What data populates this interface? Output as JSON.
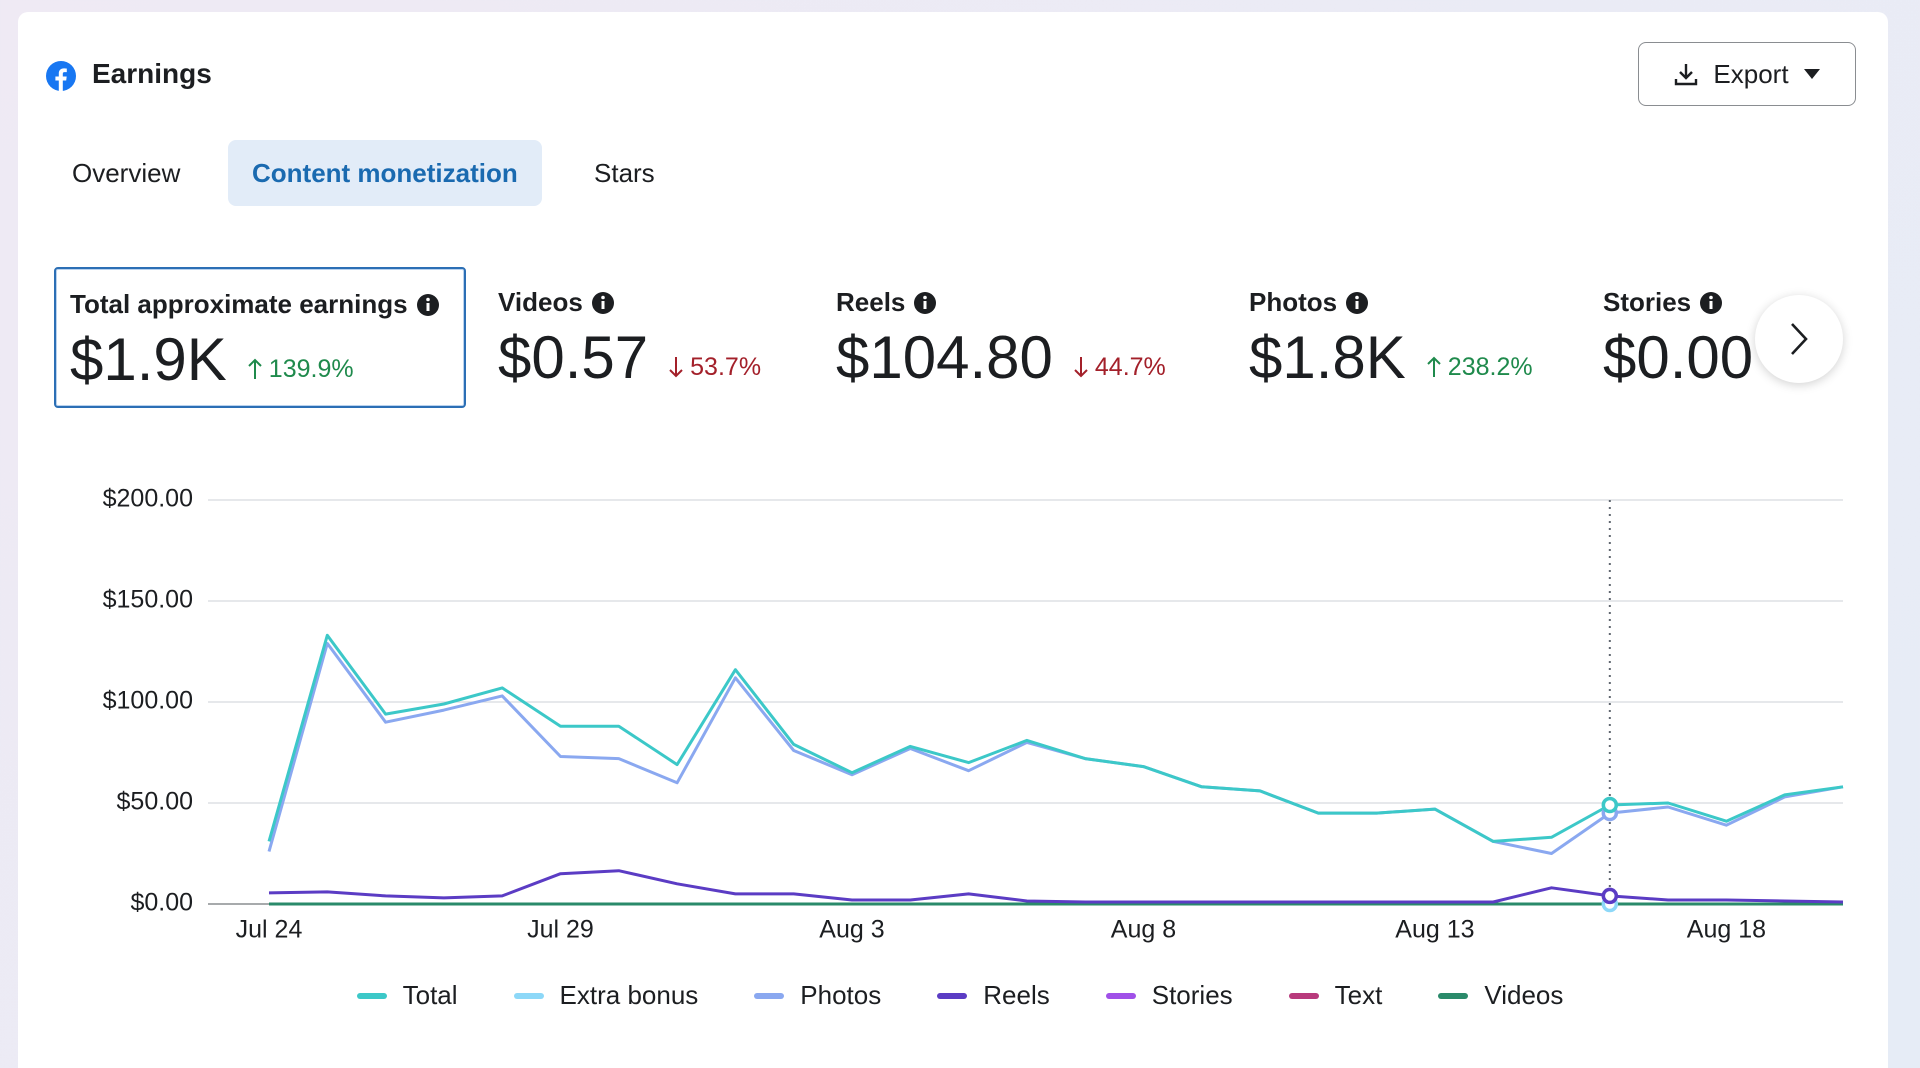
{
  "header": {
    "title": "Earnings",
    "export": "Export"
  },
  "tabs": [
    "Overview",
    "Content monetization",
    "Stars"
  ],
  "metrics": [
    {
      "label": "Total approximate earnings",
      "value": "$1.9K",
      "change": "139.9%",
      "trend": "up"
    },
    {
      "label": "Videos",
      "value": "$0.57",
      "change": "53.7%",
      "trend": "down"
    },
    {
      "label": "Reels",
      "value": "$104.80",
      "change": "44.7%",
      "trend": "down"
    },
    {
      "label": "Photos",
      "value": "$1.8K",
      "change": "238.2%",
      "trend": "up"
    },
    {
      "label": "Stories",
      "value": "$0.00"
    }
  ],
  "chart_data": {
    "type": "line",
    "categories": [
      "Jul 24",
      null,
      null,
      null,
      null,
      "Jul 29",
      null,
      null,
      null,
      null,
      "Aug 3",
      null,
      null,
      null,
      null,
      "Aug 8",
      null,
      null,
      null,
      null,
      "Aug 13",
      null,
      null,
      null,
      null,
      "Aug 18",
      null,
      null
    ],
    "series": [
      {
        "name": "Total",
        "color": "#3cc8c8",
        "values": [
          31,
          133,
          94,
          99,
          107,
          88,
          88,
          69,
          116,
          79,
          65,
          78,
          70,
          81,
          72,
          68,
          58,
          56,
          45,
          45,
          47,
          31,
          33,
          49,
          50,
          41,
          54,
          58
        ]
      },
      {
        "name": "Extra bonus",
        "color": "#8dd8f8",
        "values": [
          0,
          0,
          0,
          0,
          0,
          0,
          0,
          0,
          0,
          0,
          0,
          0,
          0,
          0,
          0,
          0,
          0,
          0,
          0,
          0,
          0,
          0,
          0,
          0,
          0,
          0,
          0,
          0
        ]
      },
      {
        "name": "Photos",
        "color": "#8aa8f0",
        "values": [
          26,
          129,
          90,
          96,
          103,
          73,
          72,
          60,
          112,
          76,
          64,
          77,
          66,
          80,
          72,
          68,
          58,
          56,
          45,
          45,
          47,
          31,
          25,
          45,
          48,
          39,
          53,
          58
        ]
      },
      {
        "name": "Reels",
        "color": "#5b3cc4",
        "values": [
          5.5,
          6,
          4,
          3,
          4,
          15,
          16.5,
          10,
          5,
          5,
          2,
          2,
          5,
          1.5,
          1,
          1,
          1,
          1,
          1,
          1,
          1,
          1,
          8,
          4,
          2,
          2,
          1.5,
          1
        ]
      },
      {
        "name": "Stories",
        "color": "#a050e8",
        "values": [
          0,
          0,
          0,
          0,
          0,
          0,
          0,
          0,
          0,
          0,
          0,
          0,
          0,
          0,
          0,
          0,
          0,
          0,
          0,
          0,
          0,
          0,
          0,
          0,
          0,
          0,
          0,
          0
        ]
      },
      {
        "name": "Text",
        "color": "#b83a7c",
        "values": [
          0,
          0,
          0,
          0,
          0,
          0,
          0,
          0,
          0,
          0,
          0,
          0,
          0,
          0,
          0,
          0,
          0,
          0,
          0,
          0,
          0,
          0,
          0,
          0,
          0,
          0,
          0,
          0
        ]
      },
      {
        "name": "Videos",
        "color": "#2a8a6a",
        "values": [
          0,
          0,
          0,
          0,
          0,
          0,
          0,
          0,
          0,
          0,
          0,
          0,
          0,
          0,
          0,
          0,
          0,
          0,
          0,
          0,
          0,
          0,
          0,
          0,
          0,
          0,
          0,
          0
        ]
      }
    ],
    "ylim": [
      0,
      200
    ],
    "yticks": [
      {
        "value": 0,
        "label": "$0.00"
      },
      {
        "value": 50,
        "label": "$50.00"
      },
      {
        "value": 100,
        "label": "$100.00"
      },
      {
        "value": 150,
        "label": "$150.00"
      },
      {
        "value": 200,
        "label": "$200.00"
      }
    ],
    "grid": true
  }
}
